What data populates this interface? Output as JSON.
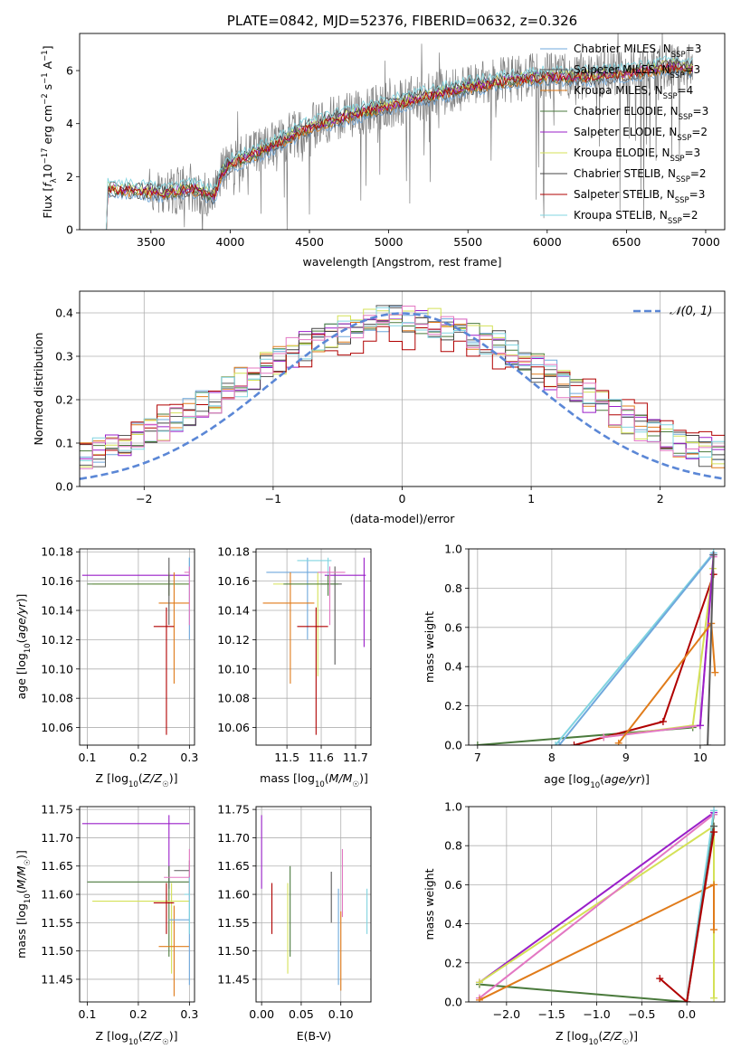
{
  "colors": {
    "Chabrier MILES": "#6fa8dc",
    "Salpeter MILES": "#595959",
    "Kroupa MILES": "#e07b1a",
    "Chabrier ELODIE": "#4a7a3c",
    "Salpeter ELODIE": "#9a1fc9",
    "Kroupa ELODIE": "#d4e157",
    "Chabrier STELIB": "#444444",
    "Salpeter STELIB": "#b00000",
    "Kroupa STELIB": "#80d4e0",
    "pink": "#e377c2",
    "data": "#7f7f7f",
    "gauss": "#5b87d6"
  },
  "chart_data": [
    {
      "id": "spectrum",
      "type": "line",
      "title": "PLATE=0842, MJD=52376, FIBERID=0632, z=0.326",
      "xlabel": "wavelength [Angstrom, rest frame]",
      "ylabel": "Flux [f_λ 10^-17 erg cm^-2 s^-1 A^-1]",
      "xlim": [
        3050,
        7120
      ],
      "ylim": [
        0,
        7.4
      ],
      "xticks": [
        3500,
        4000,
        4500,
        5000,
        5500,
        6000,
        6500,
        7000
      ],
      "yticks": [
        0,
        2,
        4,
        6
      ],
      "legend": "top-right",
      "series": [
        {
          "name": "Chabrier MILES, N_SSP=3",
          "label": "Chabrier MILES, N",
          "sub": "SSP",
          "suffix": "=3",
          "color": "#6fa8dc"
        },
        {
          "name": "Salpeter MILES, N_SSP=3",
          "label": "Salpeter MILES, N",
          "sub": "SSP",
          "suffix": "=3",
          "color": "#595959"
        },
        {
          "name": "Kroupa MILES, N_SSP=4",
          "label": "Kroupa MILES, N",
          "sub": "SSP",
          "suffix": "=4",
          "color": "#e07b1a"
        },
        {
          "name": "Chabrier ELODIE, N_SSP=3",
          "label": "Chabrier ELODIE, N",
          "sub": "SSP",
          "suffix": "=3",
          "color": "#4a7a3c"
        },
        {
          "name": "Salpeter ELODIE, N_SSP=2",
          "label": "Salpeter ELODIE, N",
          "sub": "SSP",
          "suffix": "=2",
          "color": "#9a1fc9"
        },
        {
          "name": "Kroupa ELODIE, N_SSP=3",
          "label": "Kroupa ELODIE, N",
          "sub": "SSP",
          "suffix": "=3",
          "color": "#d4e157"
        },
        {
          "name": "Chabrier STELIB, N_SSP=2",
          "label": "Chabrier STELIB, N",
          "sub": "SSP",
          "suffix": "=2",
          "color": "#444444"
        },
        {
          "name": "Salpeter STELIB, N_SSP=3",
          "label": "Salpeter STELIB, N",
          "sub": "SSP",
          "suffix": "=3",
          "color": "#b00000"
        },
        {
          "name": "Kroupa STELIB, N_SSP=2",
          "label": "Kroupa STELIB, N",
          "sub": "SSP",
          "suffix": "=2",
          "color": "#80d4e0"
        }
      ],
      "continuum": [
        [
          3210,
          1.6
        ],
        [
          3400,
          1.5
        ],
        [
          3600,
          1.4
        ],
        [
          3750,
          1.6
        ],
        [
          3900,
          1.3
        ],
        [
          3950,
          2.2
        ],
        [
          4000,
          2.5
        ],
        [
          4200,
          3.0
        ],
        [
          4500,
          3.9
        ],
        [
          4800,
          4.4
        ],
        [
          5000,
          4.7
        ],
        [
          5200,
          5.0
        ],
        [
          5500,
          5.4
        ],
        [
          5800,
          5.7
        ],
        [
          6000,
          5.8
        ],
        [
          6300,
          5.8
        ],
        [
          6600,
          6.0
        ],
        [
          6800,
          6.2
        ],
        [
          6920,
          6.1
        ]
      ]
    },
    {
      "id": "residuals",
      "type": "line",
      "xlabel": "(data-model)/error",
      "ylabel": "Normed distribution",
      "xlim": [
        -2.5,
        2.5
      ],
      "ylim": [
        0,
        0.45
      ],
      "xticks": [
        -2,
        -1,
        0,
        1,
        2
      ],
      "yticks": [
        0.0,
        0.1,
        0.2,
        0.3,
        0.4
      ],
      "legend": "top-right",
      "legend_label": "𝒩(0, 1)",
      "gaussian": {
        "mu": 0,
        "sigma": 1
      }
    },
    {
      "id": "age-vs-Z",
      "type": "scatter",
      "xlabel": "Z [log10(Z/Z☉)]",
      "ylabel": "age [log10(age/yr)]",
      "xlim": [
        0.085,
        0.31
      ],
      "ylim": [
        10.048,
        10.182
      ],
      "xticks": [
        0.1,
        0.2,
        0.3
      ],
      "yticks": [
        10.06,
        10.08,
        10.1,
        10.12,
        10.14,
        10.16,
        10.18
      ],
      "points": [
        {
          "c": "#9a1fc9",
          "x": 0.26,
          "y": 10.164,
          "xerr": [
            0.09,
            0.3
          ],
          "yerr": [
            10.164,
            10.164
          ]
        },
        {
          "c": "#d4e157",
          "x": 0.26,
          "y": 10.158,
          "xerr": [
            0.11,
            0.3
          ],
          "yerr": [
            10.15,
            10.166
          ]
        },
        {
          "c": "#4a7a3c",
          "x": 0.26,
          "y": 10.158,
          "xerr": [
            0.1,
            0.3
          ],
          "yerr": [
            10.15,
            10.164
          ]
        },
        {
          "c": "#80d4e0",
          "x": 0.3,
          "y": 10.174,
          "xerr": [
            0.3,
            0.3
          ],
          "yerr": [
            10.164,
            10.176
          ]
        },
        {
          "c": "#6fa8dc",
          "x": 0.3,
          "y": 10.166,
          "xerr": [
            0.3,
            0.3
          ],
          "yerr": [
            10.12,
            10.176
          ]
        },
        {
          "c": "#e07b1a",
          "x": 0.27,
          "y": 10.145,
          "xerr": [
            0.24,
            0.3
          ],
          "yerr": [
            10.09,
            10.166
          ]
        },
        {
          "c": "#b00000",
          "x": 0.255,
          "y": 10.129,
          "xerr": [
            0.23,
            0.27
          ],
          "yerr": [
            10.055,
            10.142
          ]
        },
        {
          "c": "#595959",
          "x": 0.26,
          "y": 10.166,
          "xerr": [
            0.26,
            0.26
          ],
          "yerr": [
            10.13,
            10.176
          ]
        },
        {
          "c": "#e377c2",
          "x": 0.3,
          "y": 10.166,
          "xerr": [
            0.29,
            0.3
          ],
          "yerr": [
            10.13,
            10.17
          ]
        }
      ]
    },
    {
      "id": "age-vs-mass",
      "type": "scatter",
      "xlabel": "mass [log10(M/M☉)]",
      "ylabel": "",
      "xlim": [
        11.41,
        11.745
      ],
      "ylim": [
        10.048,
        10.182
      ],
      "xticks": [
        11.5,
        11.6,
        11.7
      ],
      "yticks": [
        10.06,
        10.08,
        10.1,
        10.12,
        10.14,
        10.16,
        10.18
      ],
      "points": [
        {
          "c": "#6fa8dc",
          "x": 11.56,
          "y": 10.166,
          "xerr": [
            11.44,
            11.6
          ],
          "yerr": [
            10.12,
            10.176
          ]
        },
        {
          "c": "#d4e157",
          "x": 11.59,
          "y": 10.158,
          "xerr": [
            11.46,
            11.62
          ],
          "yerr": [
            10.095,
            10.166
          ]
        },
        {
          "c": "#595959",
          "x": 11.64,
          "y": 10.158,
          "xerr": [
            11.6,
            11.66
          ],
          "yerr": [
            10.103,
            10.17
          ]
        },
        {
          "c": "#e07b1a",
          "x": 11.51,
          "y": 10.145,
          "xerr": [
            11.43,
            11.58
          ],
          "yerr": [
            10.09,
            10.166
          ]
        },
        {
          "c": "#b00000",
          "x": 11.585,
          "y": 10.129,
          "xerr": [
            11.53,
            11.62
          ],
          "yerr": [
            10.055,
            10.142
          ]
        },
        {
          "c": "#9a1fc9",
          "x": 11.725,
          "y": 10.164,
          "xerr": [
            11.61,
            11.73
          ],
          "yerr": [
            10.115,
            10.176
          ]
        },
        {
          "c": "#80d4e0",
          "x": 11.62,
          "y": 10.174,
          "xerr": [
            11.53,
            11.63
          ],
          "yerr": [
            10.164,
            10.176
          ]
        },
        {
          "c": "#4a7a3c",
          "x": 11.62,
          "y": 10.158,
          "xerr": [
            11.49,
            11.65
          ],
          "yerr": [
            10.15,
            10.164
          ]
        },
        {
          "c": "#e377c2",
          "x": 11.625,
          "y": 10.166,
          "xerr": [
            11.59,
            11.67
          ],
          "yerr": [
            10.13,
            10.17
          ]
        }
      ]
    },
    {
      "id": "weight-vs-age",
      "type": "line",
      "xlabel": "age [log10(age/yr)]",
      "ylabel": "mass weight",
      "xlim": [
        6.88,
        10.33
      ],
      "ylim": [
        0,
        1
      ],
      "xticks": [
        7,
        8,
        9,
        10
      ],
      "yticks": [
        0.0,
        0.2,
        0.4,
        0.6,
        0.8,
        1.0
      ],
      "lines": [
        {
          "c": "#4a7a3c",
          "pts": [
            [
              7.0,
              0.0
            ],
            [
              9.9,
              0.09
            ]
          ]
        },
        {
          "c": "#80d4e0",
          "pts": [
            [
              8.05,
              0.0
            ],
            [
              10.18,
              0.98
            ]
          ]
        },
        {
          "c": "#6fa8dc",
          "pts": [
            [
              8.1,
              0.0
            ],
            [
              10.17,
              0.97
            ]
          ]
        },
        {
          "c": "#b00000",
          "pts": [
            [
              8.3,
              0.0
            ],
            [
              9.5,
              0.12
            ],
            [
              10.18,
              0.87
            ]
          ]
        },
        {
          "c": "#d4e157",
          "pts": [
            [
              8.7,
              0.04
            ],
            [
              9.9,
              0.1
            ],
            [
              10.17,
              0.9
            ]
          ]
        },
        {
          "c": "#e377c2",
          "pts": [
            [
              8.7,
              0.04
            ],
            [
              10.0,
              0.1
            ],
            [
              10.18,
              0.96
            ]
          ]
        },
        {
          "c": "#9a1fc9",
          "pts": [
            [
              10.0,
              0.1
            ],
            [
              10.18,
              0.97
            ]
          ]
        },
        {
          "c": "#e07b1a",
          "pts": [
            [
              8.9,
              0.01
            ],
            [
              10.15,
              0.62
            ],
            [
              10.2,
              0.37
            ]
          ]
        },
        {
          "c": "#595959",
          "pts": [
            [
              10.1,
              0.0
            ],
            [
              10.18,
              0.97
            ]
          ]
        }
      ]
    },
    {
      "id": "mass-vs-Z",
      "type": "scatter",
      "xlabel": "Z [log10(Z/Z☉)]",
      "ylabel": "mass [log10(M/M☉)]",
      "xlim": [
        0.085,
        0.31
      ],
      "ylim": [
        11.41,
        11.755
      ],
      "xticks": [
        0.1,
        0.2,
        0.3
      ],
      "yticks": [
        11.45,
        11.5,
        11.55,
        11.6,
        11.65,
        11.7,
        11.75
      ],
      "points": [
        {
          "c": "#9a1fc9",
          "x": 0.26,
          "y": 11.725,
          "xerr": [
            0.09,
            0.3
          ],
          "yerr": [
            11.61,
            11.74
          ]
        },
        {
          "c": "#4a7a3c",
          "x": 0.26,
          "y": 11.622,
          "xerr": [
            0.1,
            0.3
          ],
          "yerr": [
            11.49,
            11.65
          ]
        },
        {
          "c": "#d4e157",
          "x": 0.265,
          "y": 11.588,
          "xerr": [
            0.11,
            0.3
          ],
          "yerr": [
            11.46,
            11.62
          ]
        },
        {
          "c": "#b00000",
          "x": 0.255,
          "y": 11.585,
          "xerr": [
            0.23,
            0.27
          ],
          "yerr": [
            11.53,
            11.62
          ]
        },
        {
          "c": "#e07b1a",
          "x": 0.27,
          "y": 11.508,
          "xerr": [
            0.24,
            0.3
          ],
          "yerr": [
            11.42,
            11.58
          ]
        },
        {
          "c": "#6fa8dc",
          "x": 0.3,
          "y": 11.555,
          "xerr": [
            0.26,
            0.3
          ],
          "yerr": [
            11.44,
            11.6
          ]
        },
        {
          "c": "#595959",
          "x": 0.3,
          "y": 11.642,
          "xerr": [
            0.27,
            0.3
          ],
          "yerr": [
            11.6,
            11.66
          ]
        },
        {
          "c": "#e377c2",
          "x": 0.3,
          "y": 11.63,
          "xerr": [
            0.25,
            0.3
          ],
          "yerr": [
            11.59,
            11.68
          ]
        },
        {
          "c": "#80d4e0",
          "x": 0.3,
          "y": 11.6,
          "xerr": [
            0.29,
            0.3
          ],
          "yerr": [
            11.53,
            11.63
          ]
        }
      ]
    },
    {
      "id": "mass-vs-ebv",
      "type": "scatter",
      "xlabel": "E(B-V)",
      "ylabel": "",
      "xlim": [
        -0.007,
        0.138
      ],
      "ylim": [
        11.41,
        11.755
      ],
      "xticks": [
        0.0,
        0.05,
        0.1
      ],
      "yticks": [
        11.45,
        11.5,
        11.55,
        11.6,
        11.65,
        11.7,
        11.75
      ],
      "points": [
        {
          "c": "#9a1fc9",
          "x": 0.0,
          "y": 11.67,
          "yerr": [
            11.61,
            11.74
          ]
        },
        {
          "c": "#b00000",
          "x": 0.013,
          "y": 11.57,
          "yerr": [
            11.53,
            11.62
          ]
        },
        {
          "c": "#d4e157",
          "x": 0.033,
          "y": 11.54,
          "yerr": [
            11.46,
            11.62
          ]
        },
        {
          "c": "#4a7a3c",
          "x": 0.036,
          "y": 11.57,
          "yerr": [
            11.49,
            11.65
          ]
        },
        {
          "c": "#595959",
          "x": 0.088,
          "y": 11.6,
          "yerr": [
            11.55,
            11.64
          ]
        },
        {
          "c": "#6fa8dc",
          "x": 0.097,
          "y": 11.52,
          "yerr": [
            11.44,
            11.61
          ]
        },
        {
          "c": "#e07b1a",
          "x": 0.1,
          "y": 11.5,
          "yerr": [
            11.43,
            11.57
          ]
        },
        {
          "c": "#e377c2",
          "x": 0.102,
          "y": 11.63,
          "yerr": [
            11.56,
            11.68
          ]
        },
        {
          "c": "#80d4e0",
          "x": 0.133,
          "y": 11.57,
          "yerr": [
            11.53,
            11.61
          ]
        }
      ]
    },
    {
      "id": "weight-vs-Z",
      "type": "line",
      "xlabel": "Z [log10(Z/Z☉)]",
      "ylabel": "mass weight",
      "xlim": [
        -2.42,
        0.42
      ],
      "ylim": [
        0,
        1
      ],
      "xticks": [
        -2.0,
        -1.5,
        -1.0,
        -0.5,
        0.0
      ],
      "yticks": [
        0.0,
        0.2,
        0.4,
        0.6,
        0.8,
        1.0
      ],
      "lines": [
        {
          "c": "#4a7a3c",
          "pts": [
            [
              -2.3,
              0.09
            ],
            [
              0.0,
              0.0
            ],
            [
              0.3,
              0.96
            ]
          ]
        },
        {
          "c": "#9a1fc9",
          "pts": [
            [
              -2.3,
              0.1
            ],
            [
              0.3,
              0.97
            ]
          ]
        },
        {
          "c": "#d4e157",
          "pts": [
            [
              -2.3,
              0.1
            ],
            [
              0.3,
              0.9
            ],
            [
              0.3,
              0.02
            ]
          ]
        },
        {
          "c": "#e377c2",
          "pts": [
            [
              -2.3,
              0.02
            ],
            [
              0.3,
              0.96
            ]
          ]
        },
        {
          "c": "#e07b1a",
          "pts": [
            [
              -2.3,
              0.01
            ],
            [
              0.3,
              0.6
            ],
            [
              0.3,
              0.37
            ]
          ]
        },
        {
          "c": "#80d4e0",
          "pts": [
            [
              0.0,
              0.0
            ],
            [
              0.3,
              0.98
            ]
          ]
        },
        {
          "c": "#595959",
          "pts": [
            [
              0.0,
              0.0
            ],
            [
              0.3,
              0.9
            ]
          ]
        },
        {
          "c": "#b00000",
          "pts": [
            [
              -0.3,
              0.12
            ],
            [
              0.0,
              0.0
            ],
            [
              0.3,
              0.87
            ]
          ]
        }
      ]
    }
  ]
}
